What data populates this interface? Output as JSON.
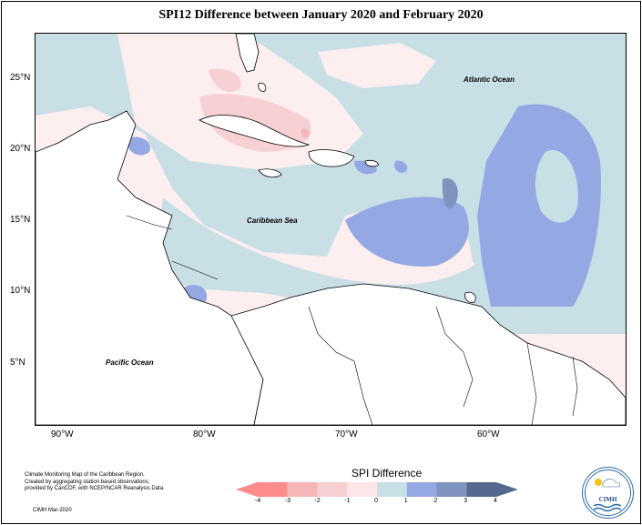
{
  "title": "SPI12 Difference between January 2020 and February 2020",
  "map": {
    "lat_labels": [
      "25°N",
      "20°N",
      "15°N",
      "10°N",
      "5°N"
    ],
    "lon_labels": [
      "90°W",
      "80°W",
      "70°W",
      "60°W"
    ],
    "places": {
      "atlantic": "Atlantic Ocean",
      "caribbean": "Caribbean Sea",
      "pacific": "Pacific Ocean"
    }
  },
  "legend": {
    "title": "SPI Difference",
    "ticks": [
      "-4",
      "-3",
      "-2",
      "-1",
      "0",
      "1",
      "2",
      "3",
      "4"
    ],
    "colors": [
      "#ff8c8c",
      "#f4b6b6",
      "#f7d0d3",
      "#fce6e8",
      "#c9dfe6",
      "#94a8e4",
      "#7e93bf",
      "#55688f"
    ]
  },
  "footer": {
    "line1": "Climate Monitoring Map of the Caribbean Region.",
    "line2": "Created by aggregating station based observations,",
    "line3": "provided by CariCOF, with NCEP/NCAR Reanalysis Data.",
    "date": "CIMH Mar-2020"
  },
  "logo": {
    "text": "CIMH"
  }
}
